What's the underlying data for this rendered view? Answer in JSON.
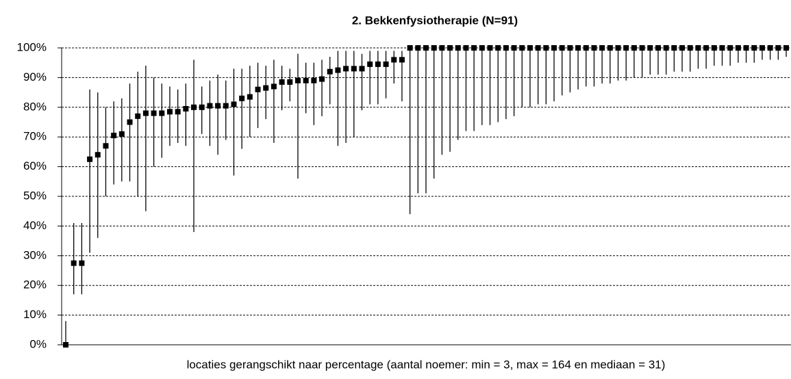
{
  "chart_data": {
    "type": "errorbar",
    "title": "2. Bekkenfysiotherapie  (N=91)",
    "x_label": "locaties gerangschikt naar percentage (aantal noemer: min = 3, max = 164 en mediaan = 31)",
    "ylim": [
      0,
      100
    ],
    "yticks": [
      {
        "value": 0,
        "label": "0%"
      },
      {
        "value": 10,
        "label": "10%"
      },
      {
        "value": 20,
        "label": "20%"
      },
      {
        "value": 30,
        "label": "30%"
      },
      {
        "value": 40,
        "label": "40%"
      },
      {
        "value": 50,
        "label": "50%"
      },
      {
        "value": 60,
        "label": "60%"
      },
      {
        "value": 70,
        "label": "70%"
      },
      {
        "value": 80,
        "label": "80%"
      },
      {
        "value": 90,
        "label": "90%"
      },
      {
        "value": 100,
        "label": "100%"
      }
    ],
    "grid": true,
    "color": "#000000",
    "values": [
      0,
      27.5,
      27.5,
      62.5,
      64,
      67,
      70.5,
      71,
      75,
      77,
      78,
      78,
      78,
      78.5,
      78.5,
      79.5,
      80,
      80,
      80.5,
      80.5,
      80.5,
      81,
      83,
      83.5,
      86,
      86.5,
      87,
      88.5,
      88.5,
      89,
      89,
      89,
      89.5,
      92,
      92.5,
      93,
      93,
      93,
      94.5,
      94.5,
      94.5,
      96,
      96,
      100,
      100,
      100,
      100,
      100,
      100,
      100,
      100,
      100,
      100,
      100,
      100,
      100,
      100,
      100,
      100,
      100,
      100,
      100,
      100,
      100,
      100,
      100,
      100,
      100,
      100,
      100,
      100,
      100,
      100,
      100,
      100,
      100,
      100,
      100,
      100,
      100,
      100,
      100,
      100,
      100,
      100,
      100,
      100,
      100,
      100,
      100,
      100
    ],
    "low": [
      0,
      17,
      17,
      31,
      36,
      50,
      54,
      55,
      55,
      50,
      45,
      60,
      63,
      67,
      68,
      67,
      38,
      71,
      67,
      64,
      69,
      57,
      66,
      70,
      73,
      76,
      68,
      79,
      82,
      56,
      78,
      74,
      77,
      81,
      67,
      68,
      70,
      79,
      81,
      81,
      83,
      88,
      82,
      44,
      51,
      51,
      56,
      64,
      65,
      69,
      72,
      72,
      74,
      74,
      75,
      76,
      77,
      80,
      80,
      81,
      81,
      82,
      84,
      85,
      86,
      87,
      87,
      88,
      88,
      89,
      89,
      90,
      90,
      91,
      91,
      91,
      92,
      92,
      92,
      93,
      93,
      94,
      94,
      94,
      95,
      95,
      95,
      96,
      96,
      96,
      97
    ],
    "high": [
      8,
      41,
      41,
      86,
      85,
      80,
      82,
      83,
      88,
      92,
      94,
      90,
      88,
      87,
      86,
      88,
      96,
      87,
      89,
      91,
      89,
      93,
      93,
      94,
      95,
      94,
      96,
      94,
      93,
      98,
      95,
      95,
      96,
      97,
      99,
      99,
      99,
      98,
      99,
      99,
      99,
      99,
      99,
      100,
      100,
      100,
      100,
      100,
      100,
      100,
      100,
      100,
      100,
      100,
      100,
      100,
      100,
      100,
      100,
      100,
      100,
      100,
      100,
      100,
      100,
      100,
      100,
      100,
      100,
      100,
      100,
      100,
      100,
      100,
      100,
      100,
      100,
      100,
      100,
      100,
      100,
      100,
      100,
      100,
      100,
      100,
      100,
      100,
      100,
      100,
      100
    ]
  }
}
